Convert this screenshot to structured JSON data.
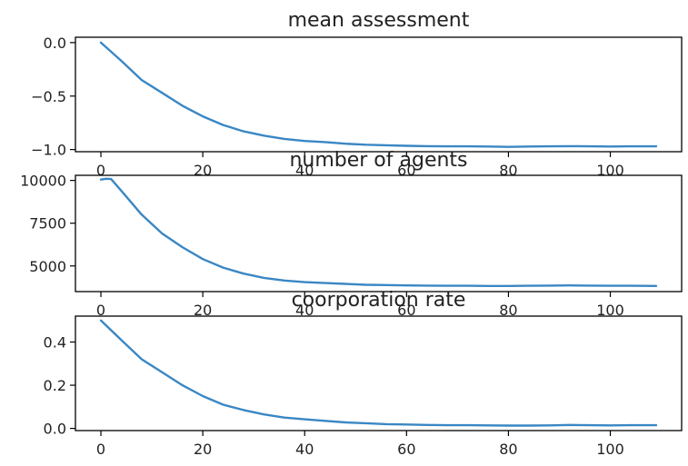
{
  "colors": {
    "line": "#3a87c4"
  },
  "chart_data": [
    {
      "type": "line",
      "title": "mean assessment",
      "xlim": [
        -5,
        114
      ],
      "ylim": [
        -1.02,
        0.05
      ],
      "xticks": [
        0,
        20,
        40,
        60,
        80,
        100
      ],
      "xtick_labels": [
        "0",
        "20",
        "40",
        "60",
        "80",
        "100"
      ],
      "yticks": [
        0.0,
        -0.5,
        -1.0
      ],
      "ytick_labels": [
        "0.0",
        "−0.5",
        "−1.0"
      ],
      "series": [
        {
          "x": [
            0,
            4,
            8,
            12,
            16,
            20,
            24,
            28,
            32,
            36,
            40,
            44,
            48,
            52,
            56,
            60,
            64,
            68,
            72,
            76,
            80,
            84,
            88,
            92,
            96,
            100,
            104,
            109
          ],
          "y": [
            0.0,
            -0.17,
            -0.35,
            -0.47,
            -0.59,
            -0.69,
            -0.77,
            -0.83,
            -0.87,
            -0.9,
            -0.92,
            -0.93,
            -0.945,
            -0.955,
            -0.96,
            -0.965,
            -0.968,
            -0.97,
            -0.97,
            -0.972,
            -0.975,
            -0.972,
            -0.97,
            -0.968,
            -0.97,
            -0.972,
            -0.97,
            -0.97
          ]
        }
      ]
    },
    {
      "type": "line",
      "title": "number of agents",
      "xlim": [
        -5,
        114
      ],
      "ylim": [
        3500,
        10300
      ],
      "xticks": [
        0,
        20,
        40,
        60,
        80,
        100
      ],
      "xtick_labels": [
        "0",
        "20",
        "40",
        "60",
        "80",
        "100"
      ],
      "yticks": [
        10000,
        7500,
        5000
      ],
      "ytick_labels": [
        "10000",
        "7500",
        "5000"
      ],
      "series": [
        {
          "x": [
            0,
            1,
            2,
            4,
            8,
            12,
            16,
            20,
            24,
            28,
            32,
            36,
            40,
            44,
            48,
            52,
            56,
            60,
            64,
            68,
            72,
            76,
            80,
            84,
            88,
            92,
            96,
            100,
            104,
            109
          ],
          "y": [
            10050,
            10100,
            10080,
            9400,
            8000,
            6900,
            6100,
            5400,
            4900,
            4550,
            4300,
            4150,
            4050,
            4000,
            3950,
            3900,
            3880,
            3860,
            3850,
            3840,
            3840,
            3830,
            3830,
            3840,
            3850,
            3860,
            3850,
            3840,
            3840,
            3830
          ]
        }
      ]
    },
    {
      "type": "line",
      "title": "coorporation rate",
      "xlim": [
        -5,
        114
      ],
      "ylim": [
        -0.01,
        0.52
      ],
      "xticks": [
        0,
        20,
        40,
        60,
        80,
        100
      ],
      "xtick_labels": [
        "0",
        "20",
        "40",
        "60",
        "80",
        "100"
      ],
      "yticks": [
        0.4,
        0.2,
        0.0
      ],
      "ytick_labels": [
        "0.4",
        "0.2",
        "0.0"
      ],
      "series": [
        {
          "x": [
            0,
            4,
            8,
            12,
            16,
            20,
            24,
            28,
            32,
            36,
            40,
            44,
            48,
            52,
            56,
            60,
            64,
            68,
            72,
            76,
            80,
            84,
            88,
            92,
            96,
            100,
            104,
            109
          ],
          "y": [
            0.5,
            0.41,
            0.32,
            0.26,
            0.2,
            0.15,
            0.11,
            0.085,
            0.065,
            0.05,
            0.042,
            0.035,
            0.028,
            0.024,
            0.02,
            0.018,
            0.016,
            0.015,
            0.015,
            0.014,
            0.013,
            0.013,
            0.014,
            0.016,
            0.015,
            0.014,
            0.015,
            0.015
          ]
        }
      ]
    }
  ]
}
